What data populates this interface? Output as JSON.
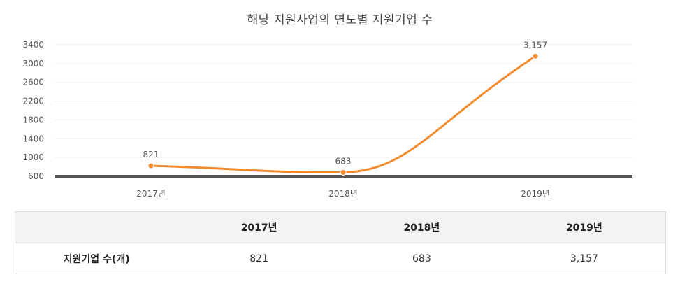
{
  "chart_data": {
    "type": "line",
    "title": "해당 지원사업의 연도별 지원기업 수",
    "categories": [
      "2017년",
      "2018년",
      "2019년"
    ],
    "series": [
      {
        "values": [
          821,
          683,
          3157
        ]
      }
    ],
    "data_labels": [
      "821",
      "683",
      "3,157"
    ],
    "y_ticks": [
      "600",
      "1000",
      "1400",
      "1800",
      "2200",
      "2600",
      "3000",
      "3400"
    ],
    "ylim": [
      600,
      3400
    ],
    "grid": true,
    "smooth": true,
    "line_color": "#f28a2e",
    "baseline_color": "#555555"
  },
  "table": {
    "header": [
      "",
      "2017년",
      "2018년",
      "2019년"
    ],
    "rows": [
      {
        "label": "지원기업 수(개)",
        "cells": [
          "821",
          "683",
          "3,157"
        ]
      }
    ]
  }
}
